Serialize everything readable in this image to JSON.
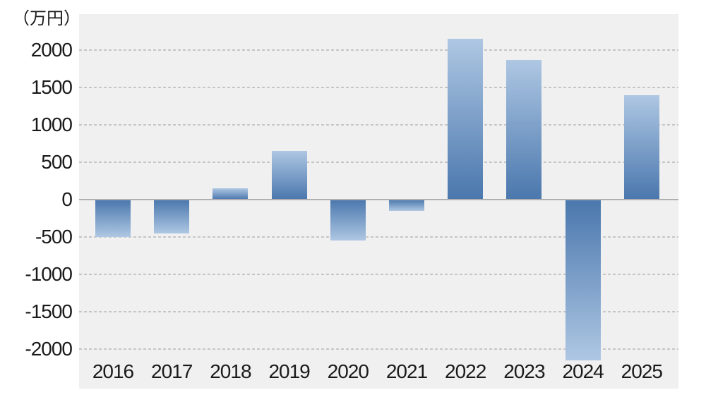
{
  "chart_data": {
    "type": "bar",
    "title": "",
    "unit_label": "（万円）",
    "categories": [
      "2016",
      "2017",
      "2018",
      "2019",
      "2020",
      "2021",
      "2022",
      "2023",
      "2024",
      "2025"
    ],
    "values": [
      -500,
      -450,
      150,
      650,
      -550,
      -150,
      2150,
      1870,
      -2150,
      1400
    ],
    "xlabel": "",
    "ylabel": "万円",
    "ylim": [
      -2500,
      2500
    ],
    "y_ticks": [
      2000,
      1500,
      1000,
      500,
      0,
      -500,
      -1000,
      -1500,
      -2000
    ],
    "grid": "horizontal-dashed",
    "legend_position": "none",
    "colors": {
      "plot_background": "#f0f0f0",
      "gridline": "#c6c6c6",
      "zero_line": "#b0b0b0",
      "bar_gradient_axis_end": "#4a77ad",
      "bar_gradient_tip_end": "#aec7e3",
      "text": "#1a1a1a",
      "page_background": "#ffffff"
    }
  }
}
